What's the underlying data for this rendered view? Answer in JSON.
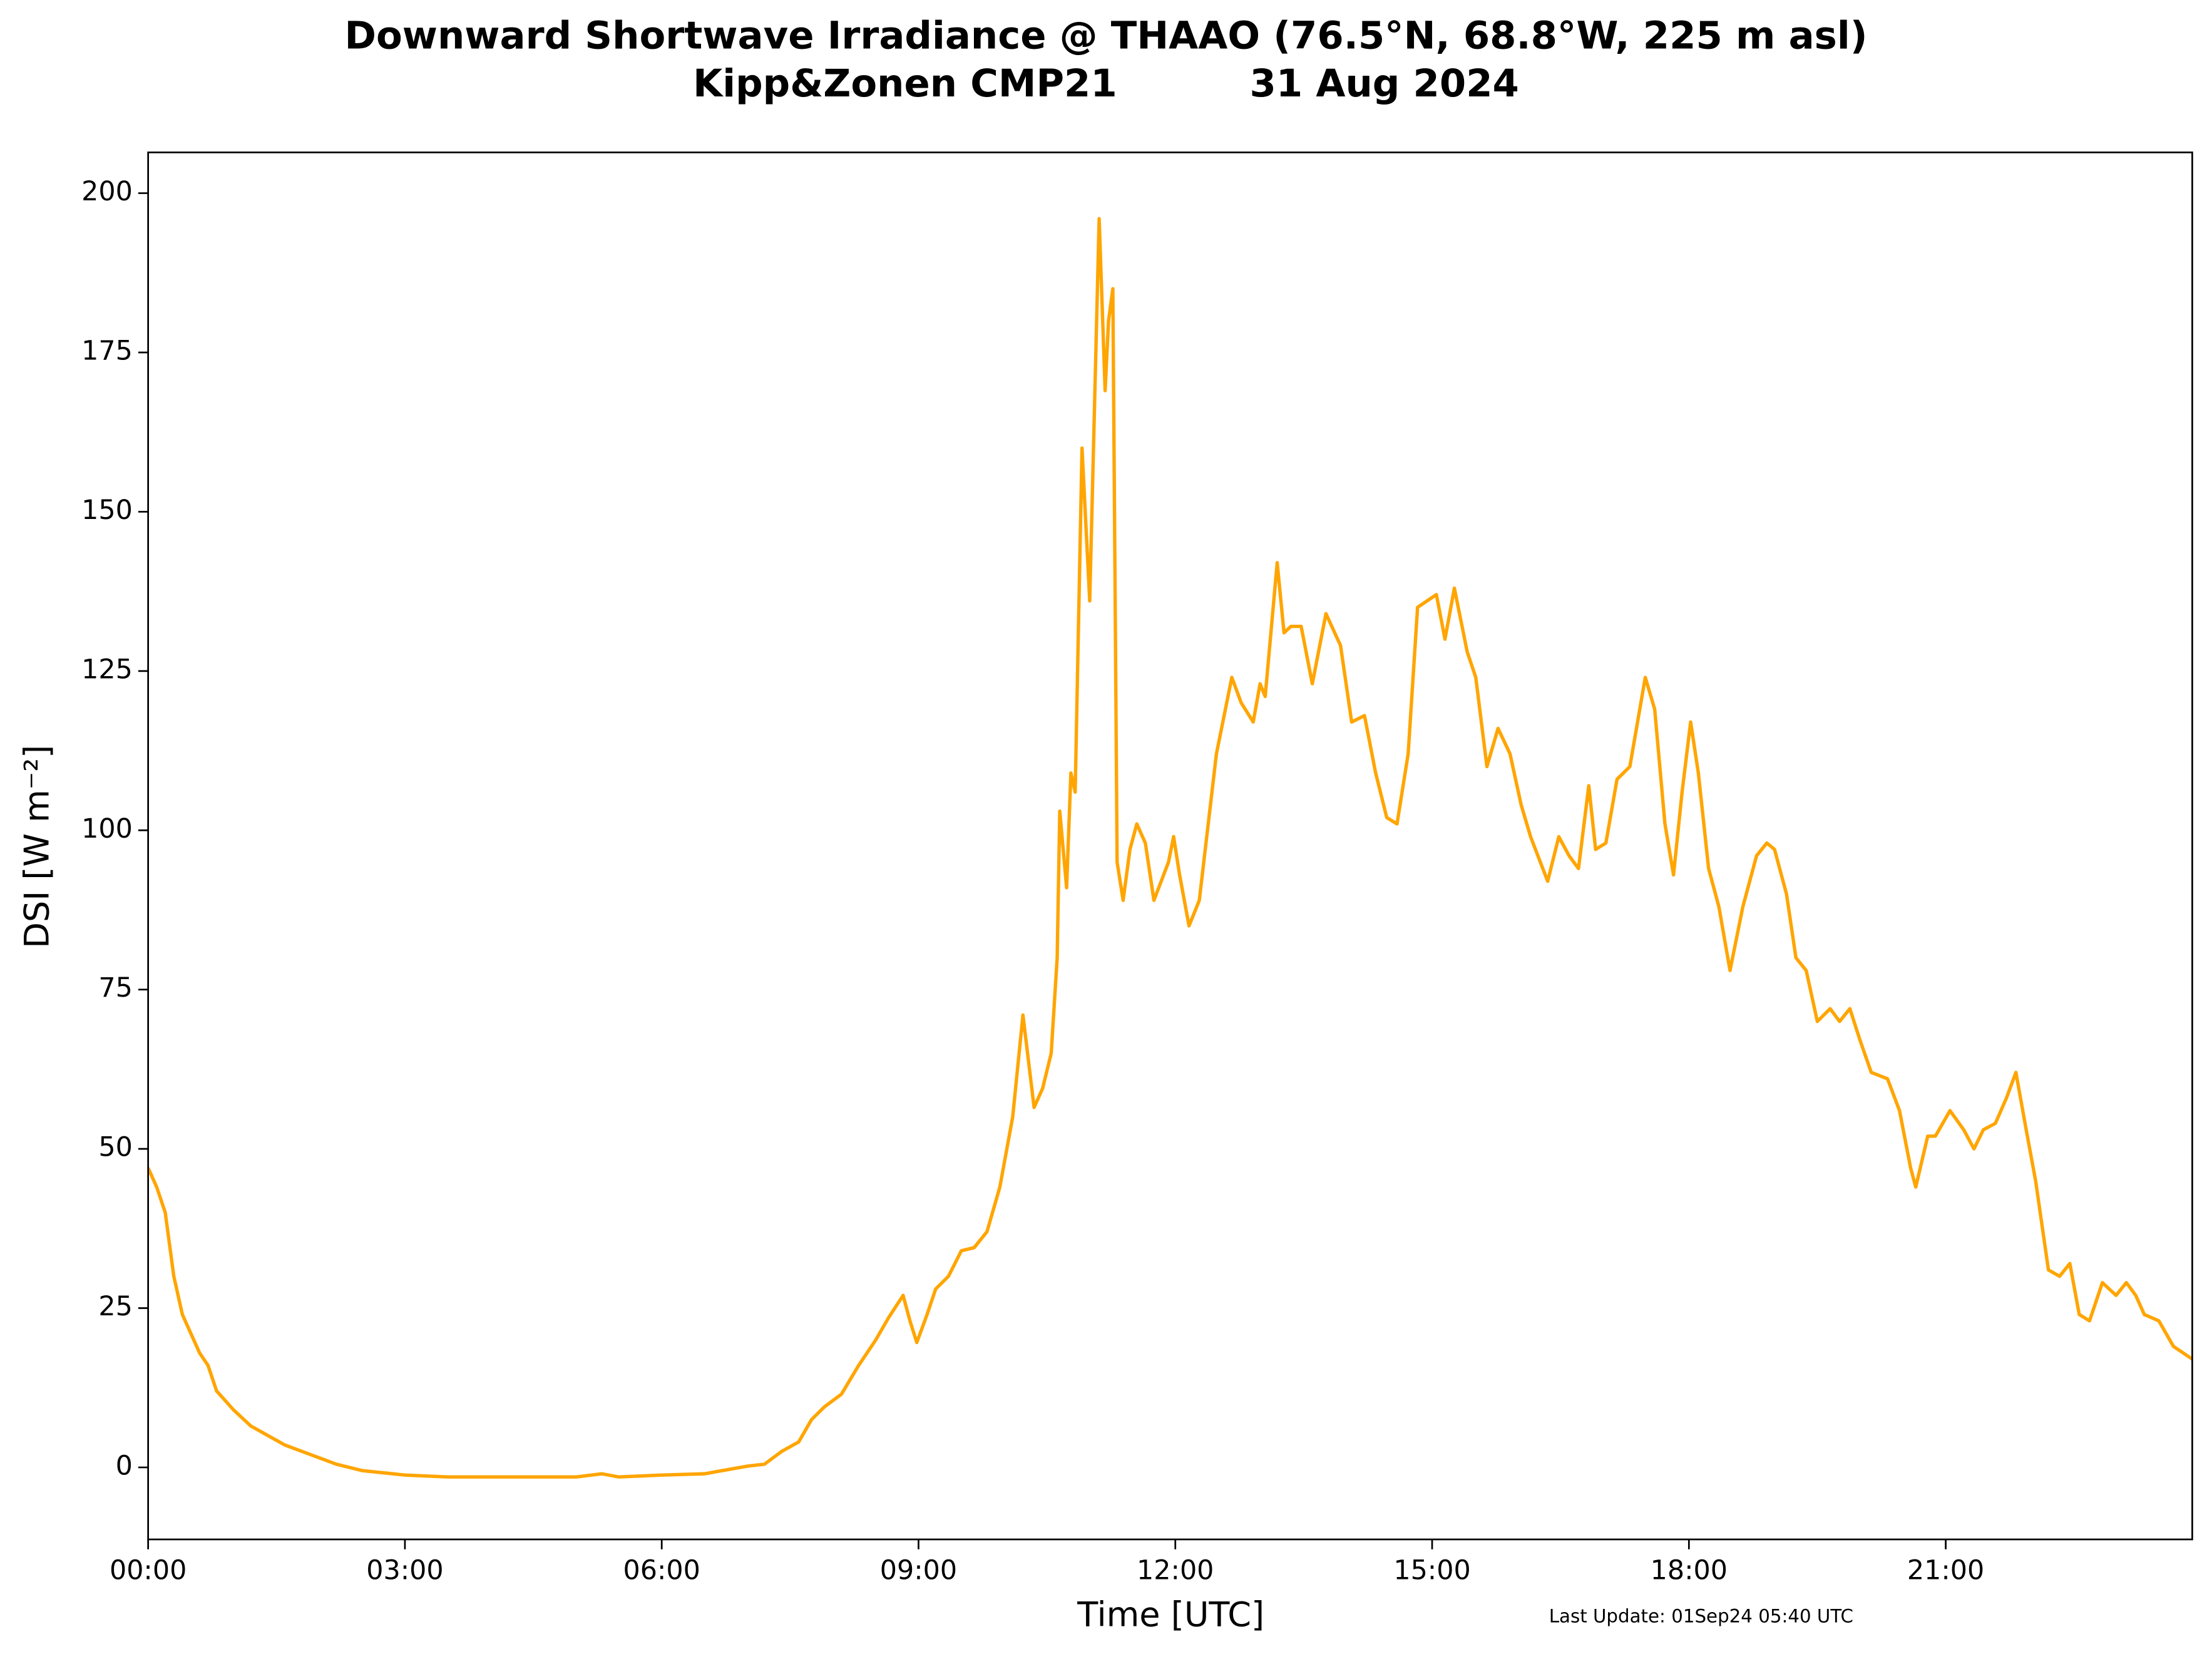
{
  "chart_data": {
    "type": "line",
    "title": "Downward Shortwave Irradiance @ THAAO (76.5°N, 68.8°W, 225 m asl)",
    "subtitle": "Kipp&Zonen CMP21          31 Aug 2024",
    "xlabel": "Time [UTC]",
    "ylabel": "DSI [W m⁻²]",
    "footnote": "Last Update: 01Sep24 05:40 UTC",
    "color": "#ffa500",
    "xlim": [
      0,
      23.88
    ],
    "xticks": [
      {
        "value": 0,
        "label": "00:00"
      },
      {
        "value": 3,
        "label": "03:00"
      },
      {
        "value": 6,
        "label": "06:00"
      },
      {
        "value": 9,
        "label": "09:00"
      },
      {
        "value": 12,
        "label": "12:00"
      },
      {
        "value": 15,
        "label": "15:00"
      },
      {
        "value": 18,
        "label": "18:00"
      },
      {
        "value": 21,
        "label": "21:00"
      }
    ],
    "ylim": [
      -11.3,
      206.4
    ],
    "yticks": [
      0,
      25,
      50,
      75,
      100,
      125,
      150,
      175,
      200
    ],
    "x": [
      0,
      0.1,
      0.2,
      0.3,
      0.4,
      0.5,
      0.6,
      0.7,
      0.8,
      1.0,
      1.2,
      1.4,
      1.6,
      1.8,
      2.0,
      2.2,
      2.5,
      3.0,
      3.5,
      4.0,
      4.5,
      5.0,
      5.3,
      5.5,
      6.0,
      6.5,
      7.0,
      7.2,
      7.4,
      7.6,
      7.75,
      7.9,
      8.1,
      8.3,
      8.5,
      8.65,
      8.82,
      8.9,
      8.98,
      9.1,
      9.2,
      9.35,
      9.5,
      9.65,
      9.8,
      9.95,
      10.1,
      10.22,
      10.35,
      10.45,
      10.55,
      10.62,
      10.65,
      10.73,
      10.78,
      10.83,
      10.91,
      11.0,
      11.11,
      11.18,
      11.22,
      11.27,
      11.32,
      11.39,
      11.47,
      11.55,
      11.65,
      11.75,
      11.92,
      11.98,
      12.05,
      12.16,
      12.28,
      12.48,
      12.66,
      12.77,
      12.91,
      12.99,
      13.05,
      13.19,
      13.27,
      13.35,
      13.47,
      13.6,
      13.76,
      13.93,
      14.06,
      14.21,
      14.34,
      14.47,
      14.59,
      14.72,
      14.83,
      15.05,
      15.15,
      15.26,
      15.41,
      15.51,
      15.64,
      15.77,
      15.91,
      16.04,
      16.15,
      16.35,
      16.48,
      16.6,
      16.71,
      16.83,
      16.91,
      17.03,
      17.16,
      17.31,
      17.49,
      17.6,
      17.72,
      17.82,
      17.92,
      18.02,
      18.11,
      18.23,
      18.35,
      18.48,
      18.63,
      18.79,
      18.91,
      19.0,
      19.14,
      19.25,
      19.37,
      19.5,
      19.65,
      19.76,
      19.88,
      20.0,
      20.13,
      20.32,
      20.46,
      20.59,
      20.65,
      20.79,
      20.88,
      21.05,
      21.21,
      21.33,
      21.44,
      21.58,
      21.71,
      21.82,
      21.94,
      22.05,
      22.2,
      22.33,
      22.45,
      22.56,
      22.68,
      22.83,
      22.99,
      23.11,
      23.22,
      23.32,
      23.49,
      23.66,
      23.88
    ],
    "values": [
      47,
      44,
      40,
      30,
      24,
      21,
      18,
      16,
      12,
      9,
      6.5,
      5,
      3.5,
      2.5,
      1.5,
      0.5,
      -0.5,
      -1.2,
      -1.5,
      -1.5,
      -1.5,
      -1.5,
      -1,
      -1.5,
      -1.2,
      -1,
      0.2,
      0.5,
      2.5,
      4,
      7.5,
      9.5,
      11.5,
      16,
      20,
      23.5,
      27,
      23,
      19.6,
      24,
      28,
      30,
      34,
      34.5,
      37,
      44,
      55,
      71,
      56.5,
      59.5,
      65,
      80,
      103,
      91,
      109,
      106,
      160,
      136,
      196,
      169,
      180,
      185,
      95,
      89,
      97,
      101,
      98,
      89,
      95,
      99,
      93,
      85,
      89,
      112,
      124,
      120,
      117,
      123,
      121,
      142,
      131,
      132,
      132,
      123,
      134,
      129,
      117,
      118,
      109,
      102,
      101,
      112,
      135,
      137,
      130,
      138,
      128,
      124,
      110,
      116,
      112,
      104,
      99,
      92,
      99,
      96,
      94,
      107,
      97,
      98,
      108,
      110,
      124,
      119,
      101,
      93,
      106,
      117,
      109,
      94,
      88,
      78,
      88,
      96,
      98,
      97,
      90,
      80,
      78,
      70,
      72,
      70,
      72,
      67,
      62,
      61,
      56,
      47,
      44,
      52,
      52,
      56,
      53,
      50,
      53,
      54,
      58,
      62,
      53,
      45,
      31,
      30,
      32,
      24,
      23,
      29,
      27,
      29,
      27,
      24,
      23,
      19,
      17
    ]
  }
}
